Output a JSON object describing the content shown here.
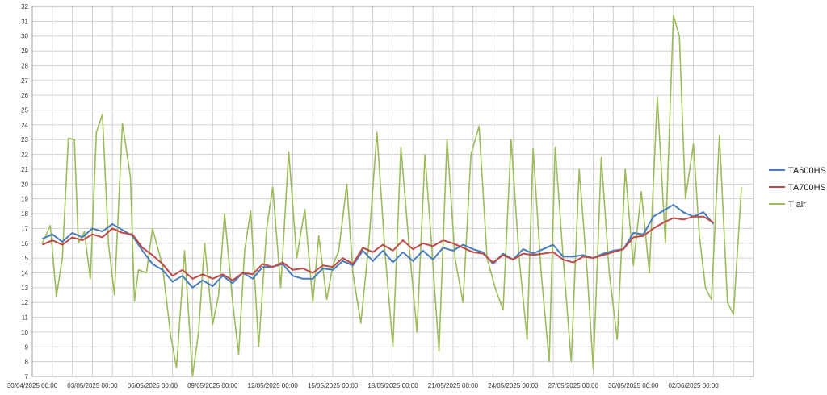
{
  "chart_data": {
    "type": "line",
    "xlim": [
      "30/04/2025 00:00",
      "05/06/2025 00:00"
    ],
    "ylim": [
      7,
      32
    ],
    "yticks": [
      7,
      8,
      9,
      10,
      11,
      12,
      13,
      14,
      15,
      16,
      17,
      18,
      19,
      20,
      21,
      22,
      23,
      24,
      25,
      26,
      27,
      28,
      29,
      30,
      31,
      32
    ],
    "xticks": [
      {
        "day": 0,
        "label": "30/04/2025 00:00"
      },
      {
        "day": 3,
        "label": "03/05/2025 00:00"
      },
      {
        "day": 6,
        "label": "06/05/2025 00:00"
      },
      {
        "day": 9,
        "label": "09/05/2025 00:00"
      },
      {
        "day": 12,
        "label": "12/05/2025 00:00"
      },
      {
        "day": 15,
        "label": "15/05/2025 00:00"
      },
      {
        "day": 18,
        "label": "18/05/2025 00:00"
      },
      {
        "day": 21,
        "label": "21/05/2025 00:00"
      },
      {
        "day": 24,
        "label": "24/05/2025 00:00"
      },
      {
        "day": 27,
        "label": "27/05/2025 00:00"
      },
      {
        "day": 30,
        "label": "30/05/2025 00:00"
      },
      {
        "day": 33,
        "label": "02/06/2025 00:00"
      }
    ],
    "grid": true,
    "legend": "right",
    "series": [
      {
        "name": "TA600HS",
        "color": "#4a7ebb",
        "points": [
          [
            0.5,
            16.3
          ],
          [
            1,
            16.6
          ],
          [
            1.5,
            16.1
          ],
          [
            2,
            16.7
          ],
          [
            2.5,
            16.4
          ],
          [
            3,
            17.0
          ],
          [
            3.5,
            16.8
          ],
          [
            4,
            17.3
          ],
          [
            4.5,
            16.9
          ],
          [
            5,
            16.5
          ],
          [
            5.5,
            15.5
          ],
          [
            6,
            14.6
          ],
          [
            6.5,
            14.2
          ],
          [
            7,
            13.4
          ],
          [
            7.5,
            13.8
          ],
          [
            8,
            13.0
          ],
          [
            8.5,
            13.5
          ],
          [
            9,
            13.1
          ],
          [
            9.5,
            13.8
          ],
          [
            10,
            13.3
          ],
          [
            10.5,
            14.0
          ],
          [
            11,
            13.6
          ],
          [
            11.5,
            14.4
          ],
          [
            12,
            14.4
          ],
          [
            12.5,
            14.6
          ],
          [
            13,
            13.8
          ],
          [
            13.5,
            13.6
          ],
          [
            14,
            13.6
          ],
          [
            14.5,
            14.3
          ],
          [
            15,
            14.2
          ],
          [
            15.5,
            14.8
          ],
          [
            16,
            14.5
          ],
          [
            16.5,
            15.5
          ],
          [
            17,
            14.8
          ],
          [
            17.5,
            15.5
          ],
          [
            18,
            14.7
          ],
          [
            18.5,
            15.4
          ],
          [
            19,
            14.8
          ],
          [
            19.5,
            15.5
          ],
          [
            20,
            14.9
          ],
          [
            20.5,
            15.7
          ],
          [
            21,
            15.5
          ],
          [
            21.5,
            15.9
          ],
          [
            22,
            15.6
          ],
          [
            22.5,
            15.4
          ],
          [
            23,
            14.6
          ],
          [
            23.5,
            15.3
          ],
          [
            24,
            14.9
          ],
          [
            24.5,
            15.6
          ],
          [
            25,
            15.3
          ],
          [
            25.5,
            15.6
          ],
          [
            26,
            15.9
          ],
          [
            26.5,
            15.1
          ],
          [
            27,
            15.1
          ],
          [
            27.5,
            15.2
          ],
          [
            28,
            15.0
          ],
          [
            28.5,
            15.3
          ],
          [
            29,
            15.5
          ],
          [
            29.5,
            15.6
          ],
          [
            30,
            16.7
          ],
          [
            30.5,
            16.6
          ],
          [
            31,
            17.8
          ],
          [
            31.5,
            18.2
          ],
          [
            32,
            18.6
          ],
          [
            32.5,
            18.1
          ],
          [
            33,
            17.8
          ],
          [
            33.5,
            18.1
          ],
          [
            34,
            17.3
          ]
        ]
      },
      {
        "name": "TA700HS",
        "color": "#be4b48",
        "points": [
          [
            0.5,
            15.9
          ],
          [
            1,
            16.2
          ],
          [
            1.5,
            15.9
          ],
          [
            2,
            16.4
          ],
          [
            2.5,
            16.2
          ],
          [
            3,
            16.6
          ],
          [
            3.5,
            16.4
          ],
          [
            4,
            17.0
          ],
          [
            4.5,
            16.7
          ],
          [
            5,
            16.6
          ],
          [
            5.5,
            15.7
          ],
          [
            6,
            15.2
          ],
          [
            6.5,
            14.6
          ],
          [
            7,
            13.8
          ],
          [
            7.5,
            14.2
          ],
          [
            8,
            13.6
          ],
          [
            8.5,
            13.9
          ],
          [
            9,
            13.6
          ],
          [
            9.5,
            13.9
          ],
          [
            10,
            13.5
          ],
          [
            10.5,
            14.0
          ],
          [
            11,
            13.9
          ],
          [
            11.5,
            14.6
          ],
          [
            12,
            14.4
          ],
          [
            12.5,
            14.7
          ],
          [
            13,
            14.2
          ],
          [
            13.5,
            14.3
          ],
          [
            14,
            14.0
          ],
          [
            14.5,
            14.5
          ],
          [
            15,
            14.4
          ],
          [
            15.5,
            15.0
          ],
          [
            16,
            14.6
          ],
          [
            16.5,
            15.7
          ],
          [
            17,
            15.4
          ],
          [
            17.5,
            15.9
          ],
          [
            18,
            15.5
          ],
          [
            18.5,
            16.2
          ],
          [
            19,
            15.6
          ],
          [
            19.5,
            16.0
          ],
          [
            20,
            15.8
          ],
          [
            20.5,
            16.2
          ],
          [
            21,
            16.0
          ],
          [
            21.5,
            15.7
          ],
          [
            22,
            15.4
          ],
          [
            22.5,
            15.3
          ],
          [
            23,
            14.7
          ],
          [
            23.5,
            15.2
          ],
          [
            24,
            14.9
          ],
          [
            24.5,
            15.3
          ],
          [
            25,
            15.2
          ],
          [
            25.5,
            15.3
          ],
          [
            26,
            15.4
          ],
          [
            26.5,
            14.9
          ],
          [
            27,
            14.7
          ],
          [
            27.5,
            15.1
          ],
          [
            28,
            15.0
          ],
          [
            28.5,
            15.2
          ],
          [
            29,
            15.4
          ],
          [
            29.5,
            15.6
          ],
          [
            30,
            16.4
          ],
          [
            30.5,
            16.5
          ],
          [
            31,
            17.0
          ],
          [
            31.5,
            17.4
          ],
          [
            32,
            17.7
          ],
          [
            32.5,
            17.6
          ],
          [
            33,
            17.8
          ],
          [
            33.5,
            17.8
          ],
          [
            34,
            17.4
          ]
        ]
      },
      {
        "name": "T air",
        "color": "#9bbb59",
        "points": [
          [
            0.5,
            16.0
          ],
          [
            0.9,
            17.2
          ],
          [
            1.2,
            12.4
          ],
          [
            1.5,
            15.0
          ],
          [
            1.8,
            23.1
          ],
          [
            2.1,
            23.0
          ],
          [
            2.3,
            16.0
          ],
          [
            2.6,
            16.8
          ],
          [
            2.9,
            13.6
          ],
          [
            3.2,
            23.5
          ],
          [
            3.5,
            24.7
          ],
          [
            3.8,
            16.0
          ],
          [
            4.1,
            12.5
          ],
          [
            4.5,
            24.1
          ],
          [
            4.9,
            20.5
          ],
          [
            5.1,
            12.1
          ],
          [
            5.3,
            14.2
          ],
          [
            5.7,
            14.0
          ],
          [
            6.0,
            17.0
          ],
          [
            6.5,
            14.5
          ],
          [
            6.9,
            9.8
          ],
          [
            7.2,
            7.6
          ],
          [
            7.6,
            15.5
          ],
          [
            8.0,
            7.0
          ],
          [
            8.3,
            10.0
          ],
          [
            8.6,
            16.0
          ],
          [
            9.0,
            10.5
          ],
          [
            9.3,
            12.5
          ],
          [
            9.6,
            18.0
          ],
          [
            10.0,
            12.0
          ],
          [
            10.3,
            8.5
          ],
          [
            10.6,
            15.5
          ],
          [
            10.9,
            18.2
          ],
          [
            11.3,
            9.0
          ],
          [
            11.7,
            17.0
          ],
          [
            12.0,
            19.8
          ],
          [
            12.4,
            13.0
          ],
          [
            12.8,
            22.2
          ],
          [
            13.2,
            15.0
          ],
          [
            13.6,
            18.3
          ],
          [
            14.0,
            12.0
          ],
          [
            14.3,
            16.5
          ],
          [
            14.7,
            12.2
          ],
          [
            15.0,
            14.5
          ],
          [
            15.3,
            15.5
          ],
          [
            15.7,
            20.0
          ],
          [
            16.0,
            14.0
          ],
          [
            16.4,
            10.6
          ],
          [
            16.8,
            16.0
          ],
          [
            17.2,
            23.5
          ],
          [
            17.6,
            15.5
          ],
          [
            18.0,
            9.0
          ],
          [
            18.4,
            22.5
          ],
          [
            18.8,
            16.0
          ],
          [
            19.2,
            10.0
          ],
          [
            19.6,
            22.0
          ],
          [
            19.9,
            16.5
          ],
          [
            20.3,
            8.7
          ],
          [
            20.7,
            23.0
          ],
          [
            21.1,
            15.0
          ],
          [
            21.5,
            12.0
          ],
          [
            21.9,
            22.0
          ],
          [
            22.3,
            23.9
          ],
          [
            22.7,
            15.0
          ],
          [
            23.1,
            13.0
          ],
          [
            23.5,
            11.5
          ],
          [
            23.9,
            23.0
          ],
          [
            24.3,
            15.0
          ],
          [
            24.7,
            9.5
          ],
          [
            25.0,
            22.4
          ],
          [
            25.4,
            14.0
          ],
          [
            25.8,
            8.0
          ],
          [
            26.1,
            22.5
          ],
          [
            26.5,
            15.0
          ],
          [
            26.9,
            8.0
          ],
          [
            27.3,
            21.0
          ],
          [
            27.7,
            14.0
          ],
          [
            28.0,
            7.5
          ],
          [
            28.4,
            21.8
          ],
          [
            28.8,
            14.0
          ],
          [
            29.2,
            9.5
          ],
          [
            29.6,
            21.0
          ],
          [
            30.0,
            14.5
          ],
          [
            30.4,
            19.5
          ],
          [
            30.8,
            14.0
          ],
          [
            31.2,
            25.9
          ],
          [
            31.6,
            16.0
          ],
          [
            32.0,
            31.4
          ],
          [
            32.3,
            30.0
          ],
          [
            32.6,
            19.0
          ],
          [
            33.0,
            22.7
          ],
          [
            33.3,
            16.5
          ],
          [
            33.6,
            13.0
          ],
          [
            33.9,
            12.2
          ],
          [
            34.3,
            23.3
          ],
          [
            34.7,
            12.0
          ],
          [
            35.0,
            11.2
          ],
          [
            35.4,
            19.8
          ]
        ]
      }
    ]
  }
}
